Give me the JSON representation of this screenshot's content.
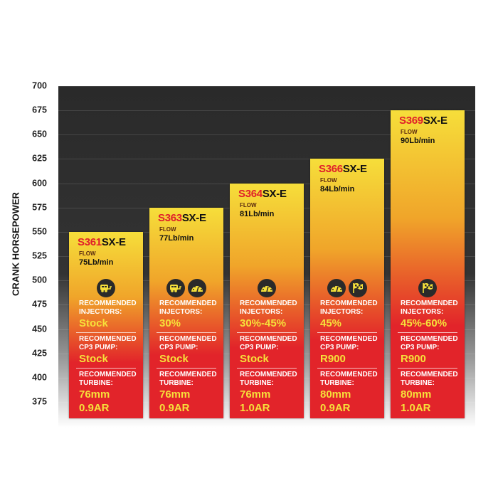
{
  "chart_data": {
    "type": "bar",
    "ylabel": "CRANK HORSEPOWER",
    "ylim": [
      375,
      700
    ],
    "yticks": [
      700,
      675,
      650,
      625,
      600,
      575,
      550,
      525,
      500,
      475,
      450,
      425,
      400,
      375
    ],
    "grid": true,
    "colors": {
      "background": "#2a2a2a",
      "bar_top": "#f6de3a",
      "bar_bottom": "#e2242a",
      "value_text": "#f6e03a",
      "model_number": "#e0202a"
    },
    "categories": [
      "S361SX-E",
      "S363SX-E",
      "S364SX-E",
      "S366SX-E",
      "S369SX-E"
    ],
    "values": [
      550,
      575,
      600,
      625,
      675
    ],
    "bars": [
      {
        "num": "S361",
        "suffix": "SX-E",
        "flow_label": "FLOW",
        "flow": "75Lb/min",
        "icons": [
          "towing-trailer-icon"
        ],
        "inj_label": "RECOMMENDED INJECTORS:",
        "injectors": "Stock",
        "pump_label": "RECOMMENDED CP3 PUMP:",
        "pump": "Stock",
        "turbo_label": "RECOMMENDED TURBINE:",
        "turbine_mm": "76mm",
        "turbine_ar": "0.9AR"
      },
      {
        "num": "S363",
        "suffix": "SX-E",
        "flow_label": "FLOW",
        "flow": "77Lb/min",
        "icons": [
          "towing-trailer-icon",
          "gauge-icon"
        ],
        "inj_label": "RECOMMENDED INJECTORS:",
        "injectors": "30%",
        "pump_label": "RECOMMENDED CP3 PUMP:",
        "pump": "Stock",
        "turbo_label": "RECOMMENDED TURBINE:",
        "turbine_mm": "76mm",
        "turbine_ar": "0.9AR"
      },
      {
        "num": "S364",
        "suffix": "SX-E",
        "flow_label": "FLOW",
        "flow": "81Lb/min",
        "icons": [
          "gauge-icon"
        ],
        "inj_label": "RECOMMENDED INJECTORS:",
        "injectors": "30%-45%",
        "pump_label": "RECOMMENDED CP3 PUMP:",
        "pump": "Stock",
        "turbo_label": "RECOMMENDED TURBINE:",
        "turbine_mm": "76mm",
        "turbine_ar": "1.0AR"
      },
      {
        "num": "S366",
        "suffix": "SX-E",
        "flow_label": "FLOW",
        "flow": "84Lb/min",
        "icons": [
          "gauge-icon",
          "checkered-flag-icon"
        ],
        "inj_label": "RECOMMENDED INJECTORS:",
        "injectors": "45%",
        "pump_label": "RECOMMENDED CP3 PUMP:",
        "pump": "R900",
        "turbo_label": "RECOMMENDED TURBINE:",
        "turbine_mm": "80mm",
        "turbine_ar": "0.9AR"
      },
      {
        "num": "S369",
        "suffix": "SX-E",
        "flow_label": "FLOW",
        "flow": "90Lb/min",
        "icons": [
          "checkered-flag-icon"
        ],
        "inj_label": "RECOMMENDED INJECTORS:",
        "injectors": "45%-60%",
        "pump_label": "RECOMMENDED CP3 PUMP:",
        "pump": "R900",
        "turbo_label": "RECOMMENDED TURBINE:",
        "turbine_mm": "80mm",
        "turbine_ar": "1.0AR"
      }
    ]
  }
}
